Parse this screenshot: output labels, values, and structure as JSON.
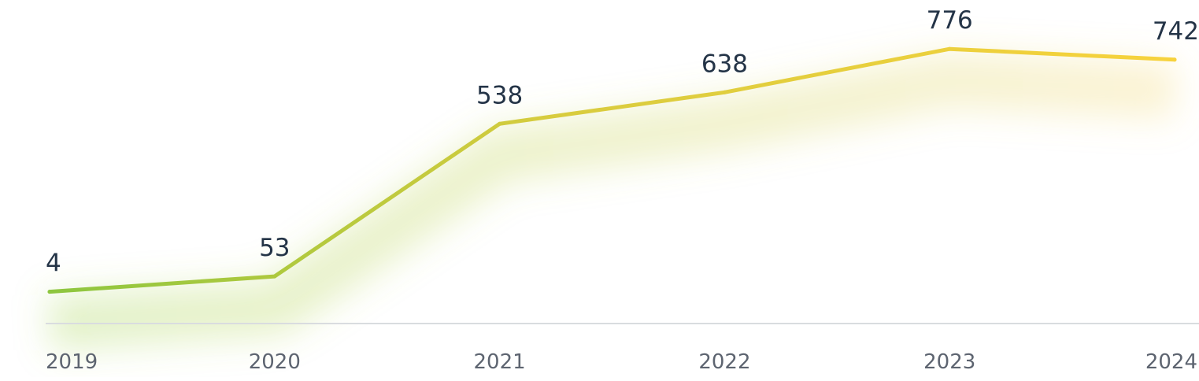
{
  "chart_data": {
    "type": "line",
    "title": "",
    "xlabel": "",
    "ylabel": "",
    "x": [
      "2019",
      "2020",
      "2021",
      "2022",
      "2023",
      "2024"
    ],
    "series": [
      {
        "values": [
          4,
          53,
          538,
          638,
          776,
          742
        ],
        "labels": [
          "4",
          "53",
          "538",
          "638",
          "776",
          "742"
        ]
      }
    ],
    "ylim": [
      -97,
      849
    ],
    "grid": false,
    "legend": "none",
    "colors": {
      "line_start": "#8dc63f",
      "line_end": "#f7d23c",
      "axis": "#d9dcdf",
      "value_text": "#243447",
      "tick_text": "#5d6470"
    }
  }
}
